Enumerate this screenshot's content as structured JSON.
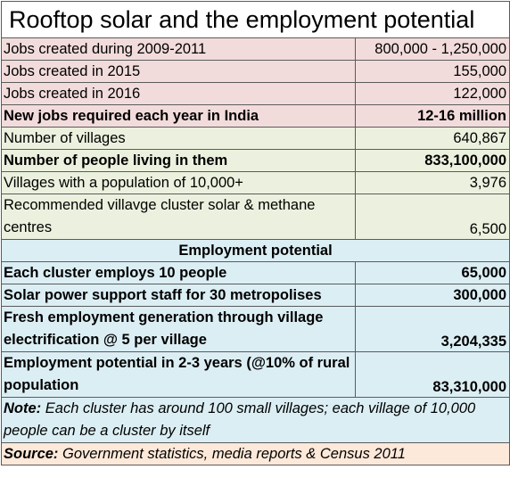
{
  "title": "Rooftop solar and the employment potential",
  "rows": [
    {
      "label": "Jobs created during 2009-2011",
      "value": "800,000 - 1,250,000"
    },
    {
      "label": "Jobs created in 2015",
      "value": "155,000"
    },
    {
      "label": "Jobs created in 2016",
      "value": "122,000"
    },
    {
      "label": "New jobs required each year  in India",
      "value": "12-16 million"
    },
    {
      "label": "Number of villages",
      "value": "640,867"
    },
    {
      "label": "Number of people living in them",
      "value": "833,100,000"
    },
    {
      "label": "Villages with a population of 10,000+",
      "value": "3,976"
    },
    {
      "label": "Recommended villavge cluster solar & methane centres",
      "value": "6,500"
    }
  ],
  "section_header": "Employment potential",
  "employment_rows": [
    {
      "label": "Each cluster employs 10 people",
      "value": "65,000"
    },
    {
      "label": "Solar power support staff for 30 metropolises",
      "value": "300,000"
    },
    {
      "label": "Fresh employment generation through village electrification @ 5 per village",
      "value": "3,204,335"
    },
    {
      "label": "Employment potential in 2-3 years (@10% of rural population",
      "value": "83,310,000"
    }
  ],
  "note": {
    "label": "Note:",
    "text": "  Each cluster has around 100 small villages; each village of 10,000 people can be a cluster by itself"
  },
  "source": {
    "label": "Source:",
    "text": "  Government statistics, media reports  & Census 2011"
  },
  "colors": {
    "pink": "#f2dcdb",
    "green": "#ebf1de",
    "blue": "#dbeef4",
    "peach": "#fde9d9",
    "border": "#5b5b5b"
  }
}
